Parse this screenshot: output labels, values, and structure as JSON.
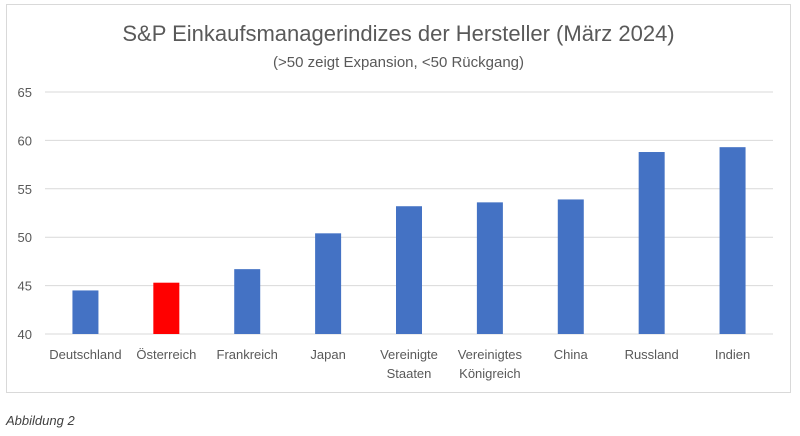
{
  "chart_data": {
    "type": "bar",
    "title": "S&P Einkaufsmanagerindizes der Hersteller (März 2024)",
    "subtitle": "(>50 zeigt Expansion, <50 Rückgang)",
    "categories": [
      [
        "Deutschland"
      ],
      [
        "Österreich"
      ],
      [
        "Frankreich"
      ],
      [
        "Japan"
      ],
      [
        "Vereinigte",
        "Staaten"
      ],
      [
        "Vereinigtes",
        "Königreich"
      ],
      [
        "China"
      ],
      [
        "Russland"
      ],
      [
        "Indien"
      ]
    ],
    "values": [
      44.5,
      45.3,
      46.7,
      50.4,
      53.2,
      53.6,
      53.9,
      58.8,
      59.3
    ],
    "bar_colors": [
      "#4472c4",
      "#ff0000",
      "#4472c4",
      "#4472c4",
      "#4472c4",
      "#4472c4",
      "#4472c4",
      "#4472c4",
      "#4472c4"
    ],
    "yticks": [
      40,
      45,
      50,
      55,
      60,
      65
    ],
    "ylim": [
      40,
      65
    ],
    "grid": true,
    "xlabel": "",
    "ylabel": ""
  },
  "caption": "Abbildung 2"
}
